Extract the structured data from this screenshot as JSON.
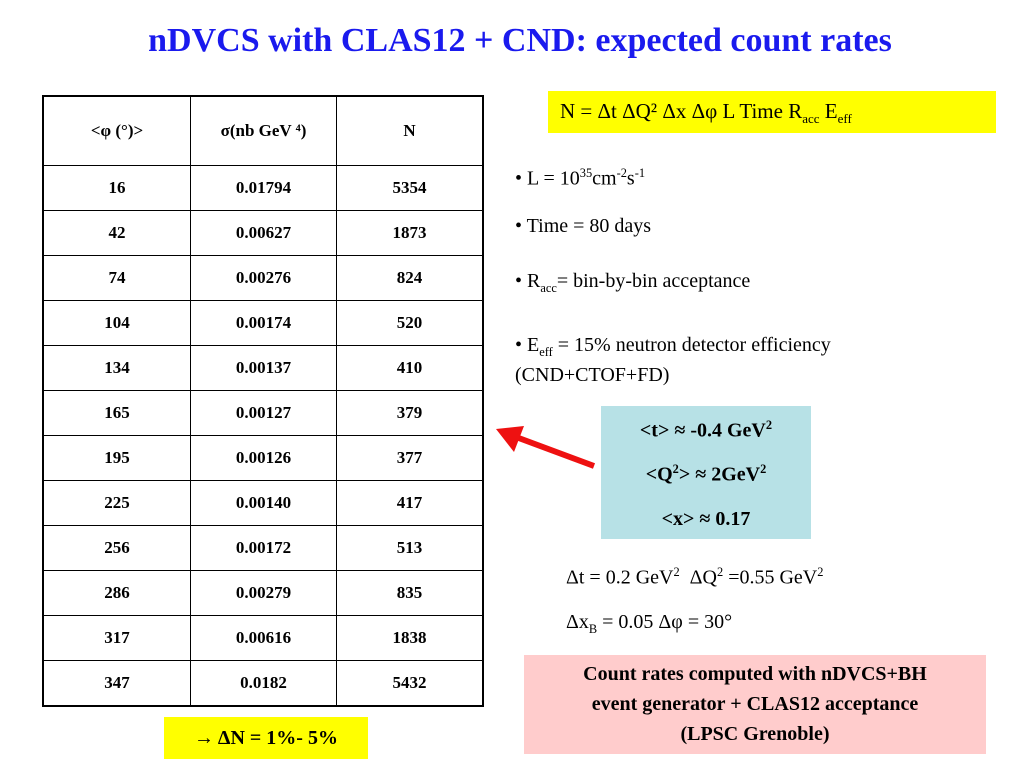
{
  "title": "nDVCS with CLAS12 + CND: expected count rates",
  "table": {
    "headers": [
      "<φ (°)>",
      "σ(nb GeV ⁴)",
      "N"
    ],
    "rows": [
      [
        "16",
        "0.01794",
        "5354"
      ],
      [
        "42",
        "0.00627",
        "1873"
      ],
      [
        "74",
        "0.00276",
        "824"
      ],
      [
        "104",
        "0.00174",
        "520"
      ],
      [
        "134",
        "0.00137",
        "410"
      ],
      [
        "165",
        "0.00127",
        "379"
      ],
      [
        "195",
        "0.00126",
        "377"
      ],
      [
        "225",
        "0.00140",
        "417"
      ],
      [
        "256",
        "0.00172",
        "513"
      ],
      [
        "286",
        "0.00279",
        "835"
      ],
      [
        "317",
        "0.00616",
        "1838"
      ],
      [
        "347",
        "0.0182",
        "5432"
      ]
    ]
  },
  "formula": {
    "main": "N = Δt ΔQ² Δx Δφ L Time R",
    "sub_acc": "acc",
    "e": " E",
    "sub_eff": "eff"
  },
  "bullets": {
    "b1_pre": "• L = 10",
    "b1_sup1": "35",
    "b1_mid": "cm",
    "b1_sup2": "-2",
    "b1_mid2": "s",
    "b1_sup3": "-1",
    "b2": "• Time = 80 days",
    "b3_pre": "• R",
    "b3_sub": "acc",
    "b3_post": "= bin-by-bin acceptance",
    "b4_pre": "• E",
    "b4_sub": "eff",
    "b4_post": " = 15% neutron detector efficiency",
    "b4_line2": "(CND+CTOF+FD)"
  },
  "averages": {
    "t": "<t> ≈ -0.4 GeV",
    "t_sup": "2",
    "q_pre": "<Q",
    "q_sup": "2",
    "q_post": "> ≈ 2GeV",
    "q_sup2": "2",
    "x": "<x> ≈ 0.17"
  },
  "deltas": {
    "line1_a": "Δt = 0.2 GeV",
    "line1_a_sup": "2",
    "line1_b": "ΔQ",
    "line1_b_sup": "2",
    "line1_c": " =0.55 GeV",
    "line1_c_sup": "2",
    "line2_a": "Δx",
    "line2_a_sub": "B",
    "line2_b": " = 0.05 Δφ = 30°"
  },
  "result": "→ ΔN = 1%- 5%",
  "note": [
    "Count rates computed with nDVCS+BH",
    "event generator + CLAS12 acceptance",
    "(LPSC Grenoble)"
  ],
  "colors": {
    "title": "#1a1aee",
    "yellow": "#ffff00",
    "cyan": "#b7e1e6",
    "pink": "#ffcccc",
    "arrow": "#ee1111"
  }
}
